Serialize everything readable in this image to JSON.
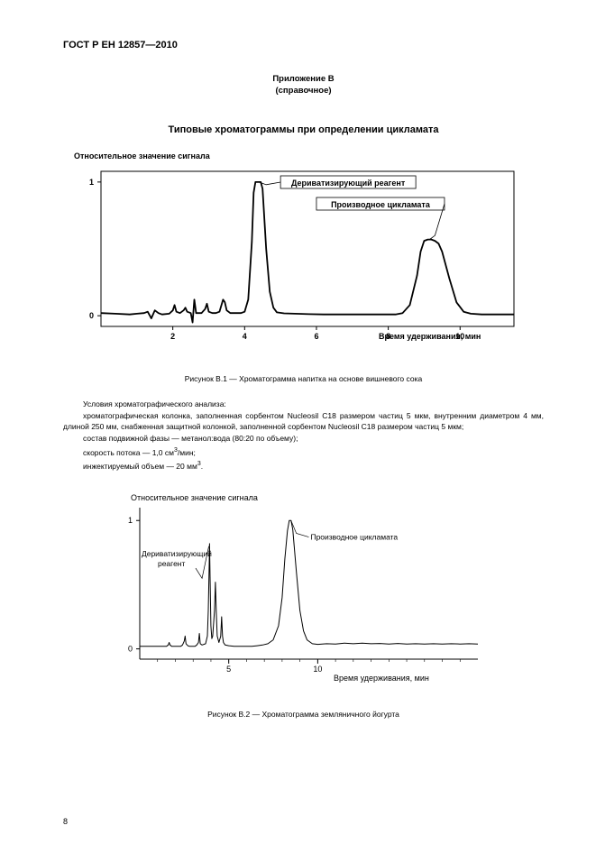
{
  "doc_header": "ГОСТ Р ЕН 12857—2010",
  "appendix_label": "Приложение В",
  "appendix_note": "(справочное)",
  "section_title": "Типовые хроматограммы при определении цикламата",
  "chart1": {
    "y_label": "Относительное значение сигнала",
    "y_label_fontsize": 9,
    "y_label_bold": true,
    "x_label": "Время удерживания, мин",
    "x_label_fontsize": 9,
    "x_label_bold": true,
    "callout1": "Дериватизирующий реагент",
    "callout2": "Производное цикламата",
    "y_ticks": [
      0,
      1
    ],
    "x_ticks": [
      2,
      4,
      6,
      8,
      10
    ],
    "xlim": [
      0,
      11.5
    ],
    "ylim": [
      -0.08,
      1.08
    ],
    "line_color": "#000000",
    "line_width": 1.8,
    "frame_color": "#000000",
    "callout_fontsize": 9,
    "callout_bold": true,
    "points": [
      [
        0,
        0.02
      ],
      [
        0.4,
        0.015
      ],
      [
        0.8,
        0.01
      ],
      [
        1.0,
        0.015
      ],
      [
        1.2,
        0.02
      ],
      [
        1.3,
        0.03
      ],
      [
        1.4,
        -0.02
      ],
      [
        1.5,
        0.04
      ],
      [
        1.6,
        0.02
      ],
      [
        1.7,
        0.01
      ],
      [
        1.9,
        0.015
      ],
      [
        2.0,
        0.04
      ],
      [
        2.05,
        0.08
      ],
      [
        2.1,
        0.03
      ],
      [
        2.2,
        0.02
      ],
      [
        2.3,
        0.04
      ],
      [
        2.35,
        0.06
      ],
      [
        2.4,
        0.03
      ],
      [
        2.5,
        0.02
      ],
      [
        2.55,
        -0.05
      ],
      [
        2.6,
        0.12
      ],
      [
        2.65,
        0.02
      ],
      [
        2.8,
        0.02
      ],
      [
        2.9,
        0.05
      ],
      [
        2.95,
        0.09
      ],
      [
        3.0,
        0.03
      ],
      [
        3.1,
        0.02
      ],
      [
        3.2,
        0.02
      ],
      [
        3.3,
        0.03
      ],
      [
        3.4,
        0.12
      ],
      [
        3.45,
        0.1
      ],
      [
        3.5,
        0.04
      ],
      [
        3.6,
        0.02
      ],
      [
        3.7,
        0.02
      ],
      [
        3.9,
        0.02
      ],
      [
        4.0,
        0.03
      ],
      [
        4.1,
        0.12
      ],
      [
        4.2,
        0.55
      ],
      [
        4.25,
        0.92
      ],
      [
        4.3,
        1.0
      ],
      [
        4.35,
        1.0
      ],
      [
        4.4,
        1.0
      ],
      [
        4.45,
        1.0
      ],
      [
        4.5,
        0.95
      ],
      [
        4.6,
        0.5
      ],
      [
        4.7,
        0.18
      ],
      [
        4.8,
        0.06
      ],
      [
        4.9,
        0.025
      ],
      [
        5.1,
        0.018
      ],
      [
        5.4,
        0.015
      ],
      [
        5.8,
        0.012
      ],
      [
        6.2,
        0.01
      ],
      [
        6.6,
        0.01
      ],
      [
        7.0,
        0.01
      ],
      [
        7.4,
        0.01
      ],
      [
        7.8,
        0.01
      ],
      [
        8.2,
        0.01
      ],
      [
        8.4,
        0.02
      ],
      [
        8.6,
        0.08
      ],
      [
        8.8,
        0.3
      ],
      [
        8.9,
        0.48
      ],
      [
        9.0,
        0.56
      ],
      [
        9.1,
        0.57
      ],
      [
        9.2,
        0.57
      ],
      [
        9.3,
        0.56
      ],
      [
        9.4,
        0.54
      ],
      [
        9.5,
        0.48
      ],
      [
        9.7,
        0.28
      ],
      [
        9.9,
        0.1
      ],
      [
        10.1,
        0.03
      ],
      [
        10.3,
        0.015
      ],
      [
        10.6,
        0.01
      ],
      [
        11.0,
        0.01
      ],
      [
        11.5,
        0.01
      ]
    ]
  },
  "caption1": "Рисунок  В.1 — Хроматограмма напитка на основе вишневого сока",
  "conditions_intro": "Условия хроматографического анализа:",
  "cond_line1": "хроматографическая колонка, заполненная сорбентом Nucleosil С18 размером частиц 5 мкм, внутренним диаметром 4 мм, длиной 250 мм, снабженная защитной колонкой, заполненной сорбентом Nucleosil С18 размером частиц 5 мкм;",
  "cond_line2_pre": "состав подвижной фазы — метанол:вода (80:20 по объему);",
  "cond_line3_pre": "скорость потока — 1,0 см",
  "cond_line3_sup": "3",
  "cond_line3_post": "/мин;",
  "cond_line4_pre": "инжектируемый объем — 20 мм",
  "cond_line4_sup": "3",
  "cond_line4_post": ".",
  "chart2": {
    "y_label": "Относительное значение сигнала",
    "x_label": "Время удерживания, мин",
    "label_fontsize": 9,
    "callout1_l1": "Дериватизирующий",
    "callout1_l2": "реагент",
    "callout2": "Производное цикламата",
    "callout_fontsize": 8.5,
    "y_ticks": [
      0,
      1
    ],
    "x_ticks": [
      5,
      10
    ],
    "xlim": [
      0,
      19
    ],
    "ylim": [
      -0.08,
      1.1
    ],
    "line_color": "#000000",
    "line_width": 1,
    "frame_color": "#000000",
    "points": [
      [
        0,
        0.02
      ],
      [
        0.5,
        0.02
      ],
      [
        1,
        0.02
      ],
      [
        1.5,
        0.02
      ],
      [
        1.6,
        0.03
      ],
      [
        1.65,
        0.05
      ],
      [
        1.7,
        0.03
      ],
      [
        1.8,
        0.02
      ],
      [
        2,
        0.02
      ],
      [
        2.3,
        0.02
      ],
      [
        2.4,
        0.03
      ],
      [
        2.5,
        0.06
      ],
      [
        2.55,
        0.1
      ],
      [
        2.6,
        0.04
      ],
      [
        2.7,
        0.025
      ],
      [
        2.8,
        0.02
      ],
      [
        3.1,
        0.02
      ],
      [
        3.2,
        0.03
      ],
      [
        3.3,
        0.05
      ],
      [
        3.35,
        0.12
      ],
      [
        3.4,
        0.04
      ],
      [
        3.5,
        0.03
      ],
      [
        3.7,
        0.04
      ],
      [
        3.8,
        0.1
      ],
      [
        3.85,
        0.3
      ],
      [
        3.9,
        0.65
      ],
      [
        3.92,
        0.82
      ],
      [
        3.95,
        0.55
      ],
      [
        4.0,
        0.18
      ],
      [
        4.05,
        0.08
      ],
      [
        4.1,
        0.1
      ],
      [
        4.2,
        0.3
      ],
      [
        4.25,
        0.52
      ],
      [
        4.3,
        0.28
      ],
      [
        4.35,
        0.1
      ],
      [
        4.45,
        0.05
      ],
      [
        4.55,
        0.1
      ],
      [
        4.6,
        0.25
      ],
      [
        4.65,
        0.1
      ],
      [
        4.7,
        0.05
      ],
      [
        4.8,
        0.03
      ],
      [
        5.0,
        0.025
      ],
      [
        5.3,
        0.02
      ],
      [
        5.7,
        0.02
      ],
      [
        6.0,
        0.02
      ],
      [
        6.3,
        0.02
      ],
      [
        6.6,
        0.025
      ],
      [
        6.9,
        0.03
      ],
      [
        7.2,
        0.04
      ],
      [
        7.5,
        0.07
      ],
      [
        7.8,
        0.18
      ],
      [
        8.0,
        0.4
      ],
      [
        8.15,
        0.7
      ],
      [
        8.3,
        0.92
      ],
      [
        8.4,
        1.0
      ],
      [
        8.5,
        1.0
      ],
      [
        8.6,
        0.93
      ],
      [
        8.8,
        0.6
      ],
      [
        9.0,
        0.3
      ],
      [
        9.2,
        0.14
      ],
      [
        9.4,
        0.07
      ],
      [
        9.7,
        0.04
      ],
      [
        10.0,
        0.035
      ],
      [
        10.5,
        0.04
      ],
      [
        11.0,
        0.038
      ],
      [
        11.5,
        0.045
      ],
      [
        12.0,
        0.04
      ],
      [
        12.5,
        0.045
      ],
      [
        13.0,
        0.04
      ],
      [
        13.5,
        0.042
      ],
      [
        14.0,
        0.038
      ],
      [
        14.5,
        0.042
      ],
      [
        15.0,
        0.038
      ],
      [
        15.5,
        0.04
      ],
      [
        16.0,
        0.038
      ],
      [
        16.5,
        0.04
      ],
      [
        17.0,
        0.038
      ],
      [
        17.5,
        0.04
      ],
      [
        18.0,
        0.038
      ],
      [
        18.5,
        0.04
      ],
      [
        19.0,
        0.038
      ]
    ]
  },
  "caption2": "Рисунок В.2 —  Хроматограмма земляничного йогурта",
  "page_number": "8",
  "colors": {
    "text": "#000000",
    "bg": "#ffffff"
  }
}
